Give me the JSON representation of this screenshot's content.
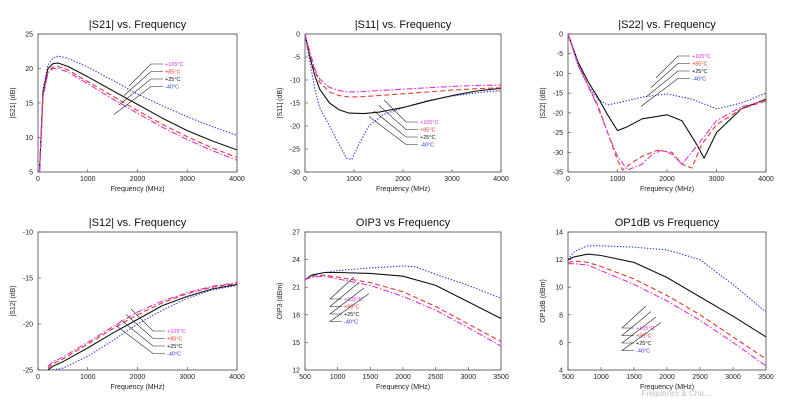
{
  "watermark": "Frequency & Cha...",
  "chart_data": [
    {
      "type": "line",
      "title": "|S21| vs. Frequency",
      "xlabel": "Frequency (MHz)",
      "ylabel": "|S21| (dB)",
      "xlim": [
        0,
        4000
      ],
      "ylim": [
        5,
        25
      ],
      "xticks": [
        "0",
        "1000",
        "2000",
        "3000",
        "4000"
      ],
      "yticks": [
        "5",
        "10",
        "15",
        "20",
        "25"
      ],
      "legend": [
        "+105°C",
        "+85°C",
        "+25°C",
        "-40°C"
      ],
      "series": [
        {
          "name": "-40°C",
          "color": "#2b3bd6",
          "dash": "dotted",
          "x": [
            30,
            100,
            200,
            300,
            400,
            600,
            1000,
            1500,
            2000,
            2500,
            3000,
            3500,
            4000
          ],
          "y": [
            5,
            17,
            20.5,
            21.5,
            21.8,
            21.5,
            20.2,
            18.3,
            16.3,
            14.6,
            13.0,
            11.6,
            10.3
          ]
        },
        {
          "name": "+25°C",
          "color": "#111111",
          "dash": "solid",
          "x": [
            30,
            100,
            200,
            300,
            400,
            600,
            1000,
            1500,
            2000,
            2500,
            3000,
            3500,
            4000
          ],
          "y": [
            5,
            16.5,
            20,
            20.7,
            20.8,
            20.3,
            18.8,
            16.8,
            14.8,
            12.8,
            11.0,
            9.5,
            8.2
          ]
        },
        {
          "name": "+85°C",
          "color": "#e23a2e",
          "dash": "dashed",
          "x": [
            30,
            100,
            200,
            300,
            400,
            600,
            1000,
            1500,
            2000,
            2500,
            3000,
            3500,
            4000
          ],
          "y": [
            5,
            16,
            19.6,
            20.2,
            20.3,
            19.8,
            18.1,
            16.0,
            13.9,
            11.9,
            10.1,
            8.5,
            7.1
          ]
        },
        {
          "name": "+105°C",
          "color": "#dd33dd",
          "dash": "dashdot",
          "x": [
            30,
            100,
            200,
            300,
            400,
            600,
            1000,
            1500,
            2000,
            2500,
            3000,
            3500,
            4000
          ],
          "y": [
            5,
            15.8,
            19.4,
            20.0,
            20.0,
            19.5,
            17.8,
            15.6,
            13.5,
            11.5,
            9.7,
            8.1,
            6.7
          ]
        }
      ]
    },
    {
      "type": "line",
      "title": "|S11| vs. Frequency",
      "xlabel": "Frequency (MHz)",
      "ylabel": "|S11| (dB)",
      "xlim": [
        0,
        4000
      ],
      "ylim": [
        -30,
        0
      ],
      "xticks": [
        "0",
        "1000",
        "2000",
        "3000",
        "4000"
      ],
      "yticks": [
        "0",
        "-5",
        "-10",
        "-15",
        "-20",
        "-25",
        "-30"
      ],
      "legend": [
        "+105°C",
        "+85°C",
        "+25°C",
        "-40°C"
      ],
      "series": [
        {
          "name": "-40°C",
          "color": "#2b3bd6",
          "dash": "dotted",
          "x": [
            0,
            100,
            200,
            300,
            500,
            700,
            850,
            950,
            1100,
            1300,
            1600,
            2000,
            2500,
            3000,
            3500,
            4000
          ],
          "y": [
            0,
            -6,
            -12,
            -16,
            -20,
            -24,
            -27,
            -27.3,
            -24,
            -20,
            -17.5,
            -16,
            -14.5,
            -13.5,
            -12.8,
            -12.3
          ]
        },
        {
          "name": "+25°C",
          "color": "#111111",
          "dash": "solid",
          "x": [
            0,
            100,
            200,
            300,
            500,
            700,
            900,
            1200,
            1500,
            2000,
            2500,
            3000,
            3500,
            4000
          ],
          "y": [
            0,
            -5,
            -9,
            -12,
            -15,
            -16.5,
            -17.2,
            -17.3,
            -17.0,
            -16.0,
            -14.6,
            -13.4,
            -12.4,
            -11.8
          ]
        },
        {
          "name": "+85°C",
          "color": "#e23a2e",
          "dash": "dashed",
          "x": [
            0,
            100,
            200,
            300,
            500,
            700,
            900,
            1200,
            1500,
            2000,
            2500,
            3000,
            3500,
            4000
          ],
          "y": [
            0,
            -4.5,
            -8,
            -10.5,
            -12.6,
            -13.4,
            -13.7,
            -13.6,
            -13.4,
            -13.0,
            -12.6,
            -12.2,
            -11.9,
            -11.7
          ]
        },
        {
          "name": "+105°C",
          "color": "#dd33dd",
          "dash": "dashdot",
          "x": [
            0,
            100,
            200,
            300,
            500,
            700,
            900,
            1200,
            1500,
            2000,
            2500,
            3000,
            3500,
            4000
          ],
          "y": [
            0,
            -4,
            -7.5,
            -9.8,
            -11.6,
            -12.3,
            -12.6,
            -12.5,
            -12.3,
            -12.0,
            -11.7,
            -11.4,
            -11.2,
            -11.1
          ]
        }
      ]
    },
    {
      "type": "line",
      "title": "|S22| vs. Frequency",
      "xlabel": "Frequency (MHz)",
      "ylabel": "|S22| (dB)",
      "xlim": [
        0,
        4000
      ],
      "ylim": [
        -35,
        0
      ],
      "xticks": [
        "0",
        "1000",
        "2000",
        "3000",
        "4000"
      ],
      "yticks": [
        "0",
        "-5",
        "-10",
        "-15",
        "-20",
        "-25",
        "-30",
        "-35"
      ],
      "legend": [
        "+105°C",
        "+85°C",
        "+25°C",
        "-40°C"
      ],
      "series": [
        {
          "name": "-40°C",
          "color": "#2b3bd6",
          "dash": "dotted",
          "x": [
            0,
            200,
            400,
            600,
            800,
            1000,
            1500,
            2000,
            2500,
            3000,
            3500,
            4000
          ],
          "y": [
            0,
            -8,
            -13,
            -16.5,
            -18,
            -17.5,
            -16,
            -15.2,
            -16.5,
            -19,
            -17.5,
            -15
          ]
        },
        {
          "name": "+25°C",
          "color": "#111111",
          "dash": "solid",
          "x": [
            0,
            200,
            400,
            600,
            800,
            1000,
            1200,
            1500,
            2000,
            2300,
            2600,
            2750,
            3000,
            3500,
            4000
          ],
          "y": [
            0,
            -7,
            -12,
            -16,
            -20.5,
            -24.5,
            -23.5,
            -21.5,
            -20.5,
            -22,
            -28,
            -31.5,
            -25,
            -19,
            -16.5
          ]
        },
        {
          "name": "+85°C",
          "color": "#e23a2e",
          "dash": "dashed",
          "x": [
            0,
            200,
            400,
            600,
            800,
            1000,
            1100,
            1250,
            1500,
            1800,
            2100,
            2300,
            2500,
            2700,
            3000,
            3500,
            4000
          ],
          "y": [
            0,
            -7.5,
            -13,
            -18,
            -25,
            -32,
            -34.5,
            -33,
            -31,
            -29.5,
            -30,
            -33,
            -34,
            -28,
            -23,
            -19,
            -17
          ]
        },
        {
          "name": "+105°C",
          "color": "#dd33dd",
          "dash": "dashdot",
          "x": [
            0,
            200,
            400,
            600,
            800,
            1000,
            1200,
            1500,
            1700,
            1900,
            2100,
            2300,
            2500,
            3000,
            3500,
            4000
          ],
          "y": [
            0,
            -7.5,
            -13,
            -18.5,
            -25,
            -31,
            -34.5,
            -33,
            -30.5,
            -29.5,
            -30.5,
            -33,
            -30,
            -22,
            -18.5,
            -16.8
          ]
        }
      ]
    },
    {
      "type": "line",
      "title": "|S12| vs. Frequency",
      "xlabel": "Frequency (MHz)",
      "ylabel": "|S12| (dB)",
      "xlim": [
        0,
        4000
      ],
      "ylim": [
        -25,
        -10
      ],
      "xticks": [
        "0",
        "1000",
        "2000",
        "3000",
        "4000"
      ],
      "yticks": [
        "-10",
        "-15",
        "-20",
        "-25"
      ],
      "legend": [
        "+105°C",
        "+85°C",
        "+25°C",
        "-40°C"
      ],
      "series": [
        {
          "name": "-40°C",
          "color": "#2b3bd6",
          "dash": "dotted",
          "x": [
            300,
            500,
            1000,
            1500,
            2000,
            2500,
            3000,
            3500,
            4000
          ],
          "y": [
            -25,
            -24.8,
            -23.5,
            -21.8,
            -20.0,
            -18.5,
            -17.2,
            -16.3,
            -15.8
          ]
        },
        {
          "name": "+25°C",
          "color": "#111111",
          "dash": "solid",
          "x": [
            200,
            300,
            500,
            1000,
            1500,
            2000,
            2500,
            3000,
            3500,
            4000
          ],
          "y": [
            -25,
            -24.6,
            -24.1,
            -22.6,
            -21.0,
            -19.5,
            -18.0,
            -17.0,
            -16.2,
            -15.7
          ]
        },
        {
          "name": "+85°C",
          "color": "#e23a2e",
          "dash": "dashed",
          "x": [
            200,
            300,
            500,
            1000,
            1500,
            2000,
            2500,
            3000,
            3500,
            4000
          ],
          "y": [
            -24.8,
            -24.3,
            -23.8,
            -22.2,
            -20.5,
            -19.0,
            -17.7,
            -16.7,
            -16.0,
            -15.6
          ]
        },
        {
          "name": "+105°C",
          "color": "#dd33dd",
          "dash": "dashdot",
          "x": [
            200,
            300,
            500,
            1000,
            1500,
            2000,
            2500,
            3000,
            3500,
            4000
          ],
          "y": [
            -24.6,
            -24.1,
            -23.6,
            -22.0,
            -20.3,
            -18.7,
            -17.5,
            -16.6,
            -15.9,
            -15.5
          ]
        }
      ]
    },
    {
      "type": "line",
      "title": "OIP3 vs Frequency",
      "xlabel": "Frequency (MHz)",
      "ylabel": "OIP3 (dBm)",
      "xlim": [
        500,
        3500
      ],
      "ylim": [
        12,
        27
      ],
      "xticks": [
        "500",
        "1000",
        "1500",
        "2000",
        "2500",
        "3000",
        "3500"
      ],
      "yticks": [
        "12",
        "15",
        "18",
        "21",
        "24",
        "27"
      ],
      "legend": [
        "+105°C",
        "+85°C",
        "+25°C",
        "-40°C"
      ],
      "series": [
        {
          "name": "-40°C",
          "color": "#2b3bd6",
          "dash": "dotted",
          "x": [
            500,
            600,
            800,
            1000,
            1500,
            2000,
            2200,
            2500,
            3000,
            3500
          ],
          "y": [
            21.8,
            22.3,
            22.6,
            22.8,
            23.1,
            23.3,
            23.2,
            22.4,
            21.2,
            19.8
          ]
        },
        {
          "name": "+25°C",
          "color": "#111111",
          "dash": "solid",
          "x": [
            500,
            600,
            800,
            1000,
            1500,
            2000,
            2500,
            3000,
            3500
          ],
          "y": [
            21.8,
            22.3,
            22.6,
            22.6,
            22.5,
            22.2,
            21.2,
            19.4,
            17.6
          ]
        },
        {
          "name": "+85°C",
          "color": "#e23a2e",
          "dash": "dashed",
          "x": [
            500,
            600,
            800,
            1000,
            1500,
            2000,
            2500,
            3000,
            3500
          ],
          "y": [
            21.8,
            22.2,
            22.3,
            22.1,
            21.5,
            20.5,
            18.9,
            17.0,
            15.1
          ]
        },
        {
          "name": "+105°C",
          "color": "#dd33dd",
          "dash": "dashdot",
          "x": [
            500,
            600,
            800,
            1000,
            1500,
            2000,
            2500,
            3000,
            3500
          ],
          "y": [
            21.8,
            22.1,
            22.2,
            21.9,
            21.2,
            20.0,
            18.5,
            16.6,
            14.6
          ]
        }
      ]
    },
    {
      "type": "line",
      "title": "OP1dB vs Frequency",
      "xlabel": "Frequency (MHz)",
      "ylabel": "OP1dB (dBm)",
      "xlim": [
        500,
        3500
      ],
      "ylim": [
        4,
        14
      ],
      "xticks": [
        "500",
        "1000",
        "1500",
        "2000",
        "2500",
        "3000",
        "3500"
      ],
      "yticks": [
        "4",
        "6",
        "8",
        "10",
        "12",
        "14"
      ],
      "legend": [
        "+105°C",
        "+85°C",
        "+25°C",
        "-40°C"
      ],
      "series": [
        {
          "name": "-40°C",
          "color": "#2b3bd6",
          "dash": "dotted",
          "x": [
            500,
            600,
            800,
            1000,
            1500,
            2000,
            2500,
            2800,
            3000,
            3500
          ],
          "y": [
            12.0,
            12.6,
            13.0,
            13.0,
            12.9,
            12.7,
            12.0,
            10.9,
            10.2,
            8.2
          ]
        },
        {
          "name": "+25°C",
          "color": "#111111",
          "dash": "solid",
          "x": [
            500,
            600,
            800,
            1000,
            1500,
            2000,
            2500,
            3000,
            3500
          ],
          "y": [
            12.0,
            12.2,
            12.4,
            12.3,
            11.8,
            10.7,
            9.3,
            7.9,
            6.4
          ]
        },
        {
          "name": "+85°C",
          "color": "#e23a2e",
          "dash": "dashed",
          "x": [
            500,
            600,
            800,
            1000,
            1500,
            2000,
            2500,
            3000,
            3500
          ],
          "y": [
            11.8,
            11.9,
            11.8,
            11.5,
            10.6,
            9.4,
            8.0,
            6.4,
            4.8
          ]
        },
        {
          "name": "+105°C",
          "color": "#dd33dd",
          "dash": "dashdot",
          "x": [
            500,
            600,
            800,
            1000,
            1500,
            2000,
            2500,
            3000,
            3500
          ],
          "y": [
            11.7,
            11.7,
            11.6,
            11.2,
            10.2,
            9.0,
            7.6,
            6.0,
            4.3
          ]
        }
      ]
    }
  ]
}
